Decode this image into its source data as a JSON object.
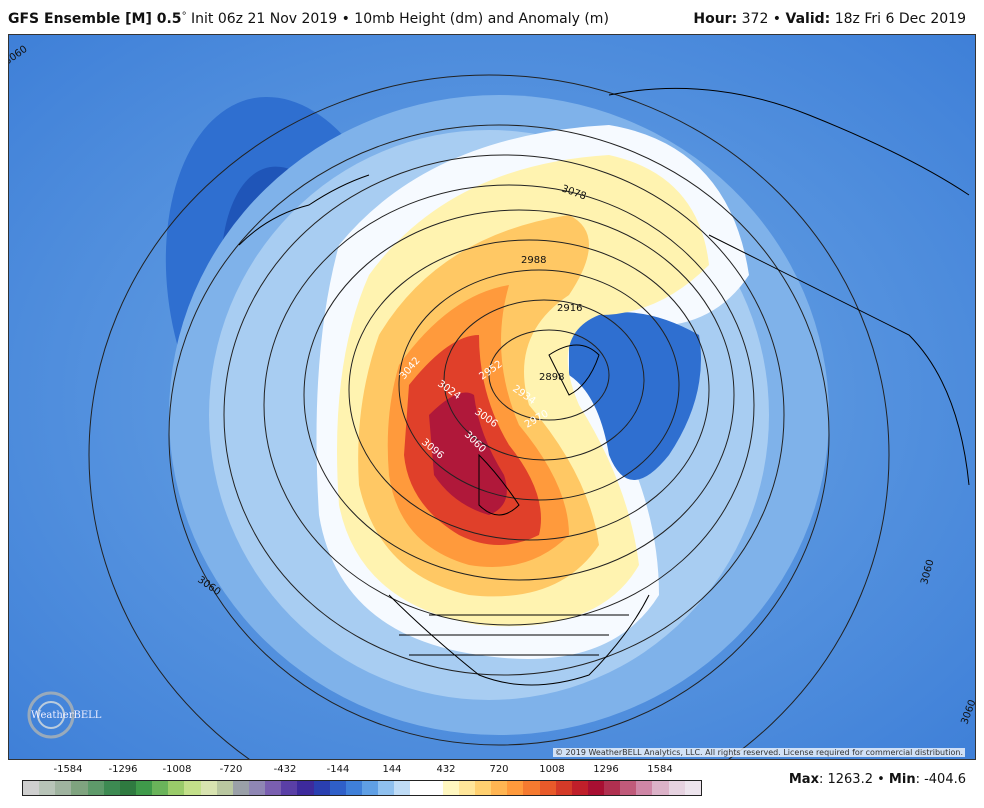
{
  "header": {
    "model": "GFS Ensemble [M] 0.5",
    "degree": "°",
    "init": " Init 06z 21 Nov 2019 • 10mb Height (dm) and Anomaly (m)",
    "hour_label": "Hour:",
    "hour_value": "372",
    "sep": " • ",
    "valid_label": "Valid:",
    "valid_value": "18z Fri 6 Dec 2019"
  },
  "contour_labels": [
    "3078",
    "2988",
    "2916",
    "2898",
    "3042",
    "3024",
    "2952",
    "2934",
    "3006",
    "2970",
    "3096",
    "3060",
    "3060",
    "3060",
    "3060",
    "3060"
  ],
  "copyright": "© 2019 WeatherBELL Analytics, LLC. All rights reserved. License required for commercial distribution.",
  "logo_text": "WeatherBELL",
  "colorbar": {
    "labels": [
      "-1584",
      "-1296",
      "-1008",
      "-720",
      "-432",
      "-144",
      "144",
      "432",
      "720",
      "1008",
      "1296",
      "1584"
    ],
    "colors": [
      "#cfcfcf",
      "#b8c4b8",
      "#9fb39f",
      "#7fa37f",
      "#5e9a6a",
      "#3d8a52",
      "#2f7a40",
      "#3f9a4a",
      "#6ab35a",
      "#9acb6a",
      "#c3df8a",
      "#d8e3b0",
      "#b9c7a0",
      "#9aa0a8",
      "#8f86b4",
      "#7a5fb0",
      "#5a3fa6",
      "#3d2a9c",
      "#2a3fb0",
      "#2f5fc8",
      "#3f7fd8",
      "#5f9fe4",
      "#8fc0ee",
      "#bfdcf6",
      "#ffffff",
      "#ffffff",
      "#fff7c0",
      "#ffe69a",
      "#ffd070",
      "#ffb552",
      "#ff9a3c",
      "#f57a30",
      "#e85a2a",
      "#d43a28",
      "#c01f2a",
      "#a80f32",
      "#b03050",
      "#c05a7a",
      "#cf86a6",
      "#dcb2c8",
      "#e6d2e0",
      "#ede4ed"
    ]
  },
  "stats": {
    "max_label": "Max",
    "max_value": ": 1263.2",
    "sep": " • ",
    "min_label": "Min",
    "min_value": ": -404.6"
  }
}
